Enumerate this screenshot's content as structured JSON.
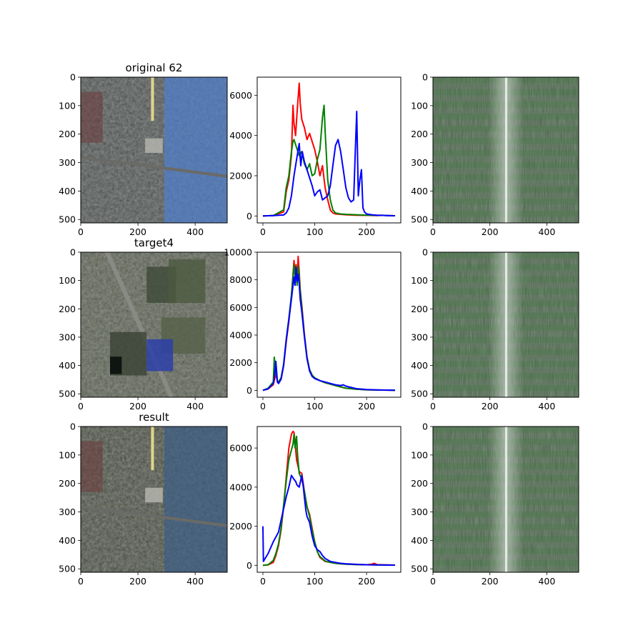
{
  "panels": [
    {
      "type": "image",
      "title": "original 62",
      "scene": "original",
      "x_ticks": [
        "0",
        "200",
        "400"
      ],
      "y_ticks": [
        "0",
        "100",
        "200",
        "300",
        "400",
        "500"
      ]
    },
    {
      "type": "line",
      "title": "",
      "x_ticks": [
        "0",
        "100",
        "200"
      ],
      "y_ticks": [
        "0",
        "2000",
        "4000",
        "6000"
      ]
    },
    {
      "type": "image",
      "title": "",
      "scene": "spectrum",
      "x_ticks": [
        "0",
        "200",
        "400"
      ],
      "y_ticks": [
        "0",
        "100",
        "200",
        "300",
        "400",
        "500"
      ]
    },
    {
      "type": "image",
      "title": "target4",
      "scene": "target",
      "x_ticks": [
        "0",
        "200",
        "400"
      ],
      "y_ticks": [
        "0",
        "100",
        "200",
        "300",
        "400",
        "500"
      ]
    },
    {
      "type": "line",
      "title": "",
      "x_ticks": [
        "0",
        "100",
        "200"
      ],
      "y_ticks": [
        "0",
        "2000",
        "4000",
        "6000",
        "8000",
        "10000"
      ]
    },
    {
      "type": "image",
      "title": "",
      "scene": "spectrum",
      "x_ticks": [
        "0",
        "200",
        "400"
      ],
      "y_ticks": [
        "0",
        "100",
        "200",
        "300",
        "400",
        "500"
      ]
    },
    {
      "type": "image",
      "title": "result",
      "scene": "result",
      "x_ticks": [
        "0",
        "200",
        "400"
      ],
      "y_ticks": [
        "0",
        "100",
        "200",
        "300",
        "400",
        "500"
      ]
    },
    {
      "type": "line",
      "title": "",
      "x_ticks": [
        "0",
        "100",
        "200"
      ],
      "y_ticks": [
        "0",
        "2000",
        "4000",
        "6000"
      ]
    },
    {
      "type": "image",
      "title": "",
      "scene": "spectrum",
      "x_ticks": [
        "0",
        "200",
        "400"
      ],
      "y_ticks": [
        "0",
        "100",
        "200",
        "300",
        "400",
        "500"
      ]
    }
  ],
  "colors": {
    "red": "#ff0000",
    "green": "#008000",
    "blue": "#0000ff"
  },
  "chart_data": [
    {
      "type": "line",
      "title": "",
      "xlim": [
        0,
        255
      ],
      "ylim": [
        0,
        6900
      ],
      "series": [
        {
          "color": "red",
          "x": [
            0,
            20,
            40,
            45,
            50,
            55,
            58,
            60,
            63,
            66,
            70,
            72,
            75,
            80,
            85,
            90,
            95,
            100,
            105,
            110,
            115,
            120,
            125,
            130,
            135,
            140,
            150,
            160,
            180,
            200,
            220,
            230,
            240,
            255
          ],
          "values": [
            0,
            20,
            200,
            1200,
            1800,
            3000,
            5500,
            4600,
            4000,
            5200,
            6600,
            5600,
            4800,
            4400,
            3800,
            4100,
            3700,
            3300,
            2700,
            2000,
            2500,
            1400,
            800,
            300,
            150,
            100,
            80,
            60,
            40,
            30,
            20,
            30,
            20,
            10
          ]
        },
        {
          "color": "green",
          "x": [
            0,
            20,
            40,
            45,
            50,
            55,
            58,
            60,
            65,
            70,
            75,
            80,
            85,
            90,
            95,
            100,
            105,
            110,
            115,
            118,
            120,
            125,
            130,
            135,
            140,
            150,
            160,
            180,
            200,
            220,
            230,
            240,
            255
          ],
          "values": [
            0,
            20,
            300,
            1400,
            2000,
            3200,
            3700,
            3800,
            3400,
            3000,
            3200,
            2600,
            2300,
            2600,
            2000,
            2100,
            2800,
            3300,
            4900,
            5500,
            4200,
            1800,
            800,
            300,
            150,
            100,
            80,
            60,
            40,
            30,
            30,
            20,
            10
          ]
        },
        {
          "color": "blue",
          "x": [
            0,
            20,
            40,
            45,
            50,
            55,
            60,
            65,
            70,
            73,
            76,
            80,
            85,
            90,
            95,
            100,
            105,
            110,
            115,
            120,
            125,
            130,
            135,
            140,
            145,
            150,
            155,
            160,
            165,
            170,
            175,
            178,
            181,
            184,
            187,
            190,
            193,
            196,
            200,
            210,
            220,
            230,
            240,
            255
          ],
          "values": [
            0,
            20,
            50,
            150,
            400,
            1000,
            2000,
            2800,
            3600,
            2500,
            3200,
            2700,
            2300,
            1900,
            1500,
            1000,
            1200,
            1300,
            800,
            900,
            1000,
            1500,
            2500,
            3500,
            3800,
            3200,
            2300,
            1400,
            900,
            700,
            800,
            3000,
            5200,
            1000,
            1800,
            2300,
            400,
            200,
            100,
            60,
            40,
            30,
            20,
            10
          ]
        }
      ]
    },
    {
      "type": "line",
      "title": "",
      "xlim": [
        0,
        255
      ],
      "ylim": [
        0,
        10000
      ],
      "series": [
        {
          "color": "red",
          "x": [
            0,
            10,
            20,
            22,
            25,
            28,
            30,
            35,
            40,
            45,
            50,
            55,
            60,
            62,
            64,
            66,
            68,
            70,
            72,
            75,
            80,
            85,
            90,
            95,
            100,
            110,
            120,
            130,
            140,
            150,
            160,
            180,
            200,
            220,
            255
          ],
          "values": [
            0,
            100,
            400,
            700,
            1200,
            600,
            500,
            800,
            1800,
            3500,
            5000,
            6800,
            9400,
            8500,
            9100,
            7800,
            9700,
            8600,
            7300,
            6200,
            4100,
            2400,
            1500,
            1100,
            900,
            700,
            550,
            450,
            350,
            250,
            150,
            80,
            40,
            20,
            0
          ]
        },
        {
          "color": "green",
          "x": [
            0,
            10,
            20,
            22,
            25,
            28,
            30,
            35,
            40,
            45,
            50,
            55,
            60,
            62,
            64,
            66,
            68,
            70,
            72,
            75,
            80,
            85,
            90,
            95,
            100,
            110,
            120,
            130,
            140,
            150,
            160,
            180,
            200,
            220,
            255
          ],
          "values": [
            0,
            150,
            600,
            2400,
            1300,
            700,
            600,
            900,
            1900,
            3700,
            5200,
            6900,
            9100,
            8200,
            8800,
            7600,
            9000,
            8200,
            7200,
            6000,
            4000,
            2400,
            1500,
            1100,
            900,
            700,
            550,
            450,
            350,
            250,
            150,
            80,
            40,
            20,
            0
          ]
        },
        {
          "color": "blue",
          "x": [
            0,
            10,
            20,
            22,
            25,
            28,
            30,
            35,
            40,
            45,
            50,
            55,
            60,
            62,
            64,
            66,
            68,
            70,
            72,
            75,
            80,
            85,
            90,
            95,
            100,
            110,
            120,
            130,
            140,
            150,
            155,
            160,
            180,
            200,
            220,
            255
          ],
          "values": [
            0,
            100,
            500,
            900,
            2100,
            600,
            500,
            800,
            1800,
            3600,
            5100,
            6600,
            8200,
            7600,
            8900,
            7900,
            8400,
            7700,
            6600,
            5700,
            3900,
            2300,
            1400,
            1000,
            850,
            700,
            600,
            500,
            400,
            350,
            400,
            300,
            120,
            60,
            30,
            0
          ]
        }
      ]
    },
    {
      "type": "line",
      "title": "",
      "xlim": [
        0,
        255
      ],
      "ylim": [
        0,
        7100
      ],
      "series": [
        {
          "color": "red",
          "x": [
            0,
            10,
            20,
            25,
            30,
            35,
            40,
            45,
            50,
            55,
            58,
            60,
            62,
            65,
            70,
            75,
            80,
            85,
            90,
            95,
            100,
            105,
            110,
            120,
            130,
            140,
            150,
            160,
            180,
            200,
            210,
            215,
            220,
            255
          ],
          "values": [
            0,
            20,
            150,
            500,
            1000,
            1800,
            3000,
            4500,
            6000,
            6700,
            6850,
            6800,
            6300,
            5400,
            4800,
            4700,
            3800,
            3000,
            2600,
            1900,
            1200,
            700,
            400,
            200,
            150,
            100,
            80,
            60,
            40,
            30,
            60,
            100,
            40,
            10
          ]
        },
        {
          "color": "green",
          "x": [
            0,
            10,
            20,
            25,
            30,
            35,
            40,
            45,
            50,
            55,
            58,
            60,
            62,
            65,
            67,
            70,
            75,
            80,
            85,
            90,
            95,
            100,
            105,
            110,
            120,
            130,
            140,
            150,
            160,
            180,
            200,
            220,
            255
          ],
          "values": [
            0,
            30,
            250,
            600,
            1100,
            1900,
            3100,
            4300,
            5400,
            5900,
            6200,
            6700,
            6000,
            6600,
            5600,
            4700,
            4400,
            3800,
            3000,
            2500,
            1800,
            1200,
            700,
            450,
            220,
            150,
            100,
            80,
            60,
            40,
            30,
            20,
            10
          ]
        },
        {
          "color": "blue",
          "x": [
            0,
            1,
            3,
            10,
            20,
            30,
            35,
            40,
            45,
            50,
            55,
            60,
            63,
            66,
            70,
            75,
            78,
            80,
            83,
            85,
            90,
            95,
            100,
            105,
            110,
            115,
            120,
            130,
            140,
            150,
            160,
            180,
            200,
            220,
            255
          ],
          "values": [
            2000,
            200,
            300,
            600,
            1200,
            1700,
            2300,
            2900,
            3500,
            4000,
            4600,
            4400,
            4300,
            4100,
            4000,
            4600,
            4000,
            3500,
            2800,
            2500,
            2200,
            1500,
            1000,
            800,
            700,
            500,
            350,
            200,
            150,
            100,
            80,
            50,
            30,
            20,
            10
          ]
        }
      ]
    }
  ]
}
